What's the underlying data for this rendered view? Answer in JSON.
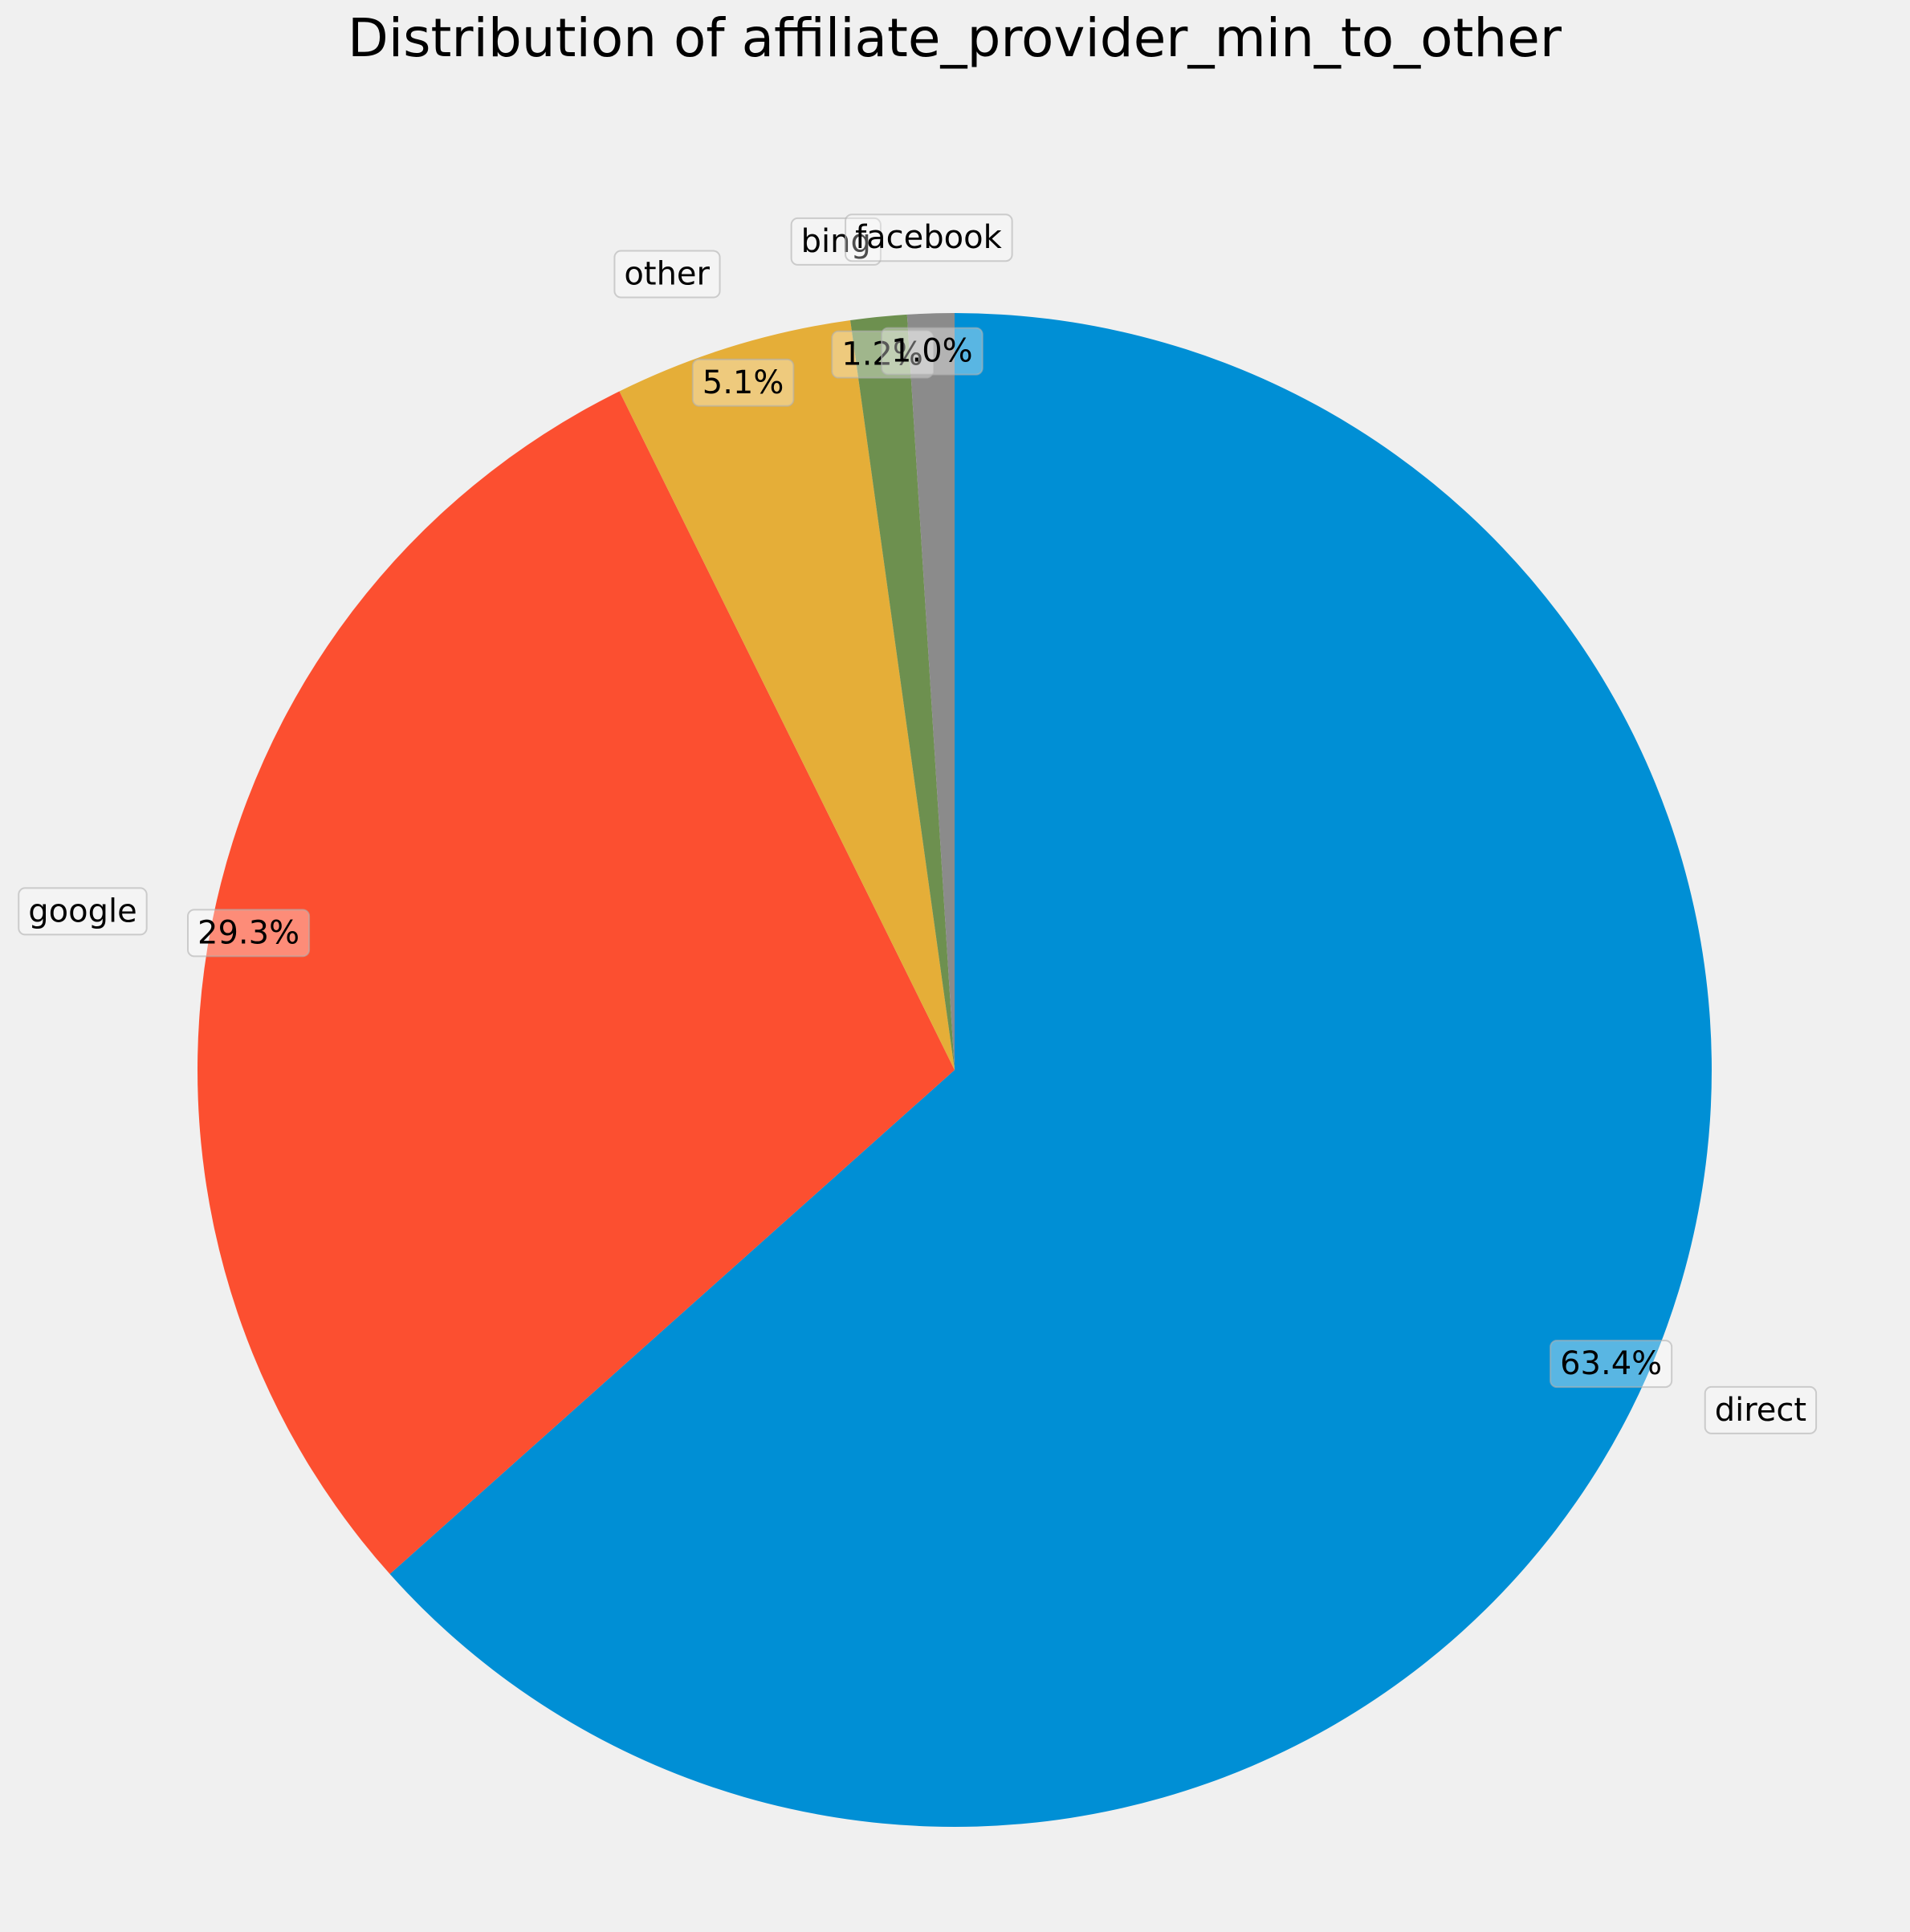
{
  "chart_data": {
    "type": "pie",
    "title": "Distribution of affiliate_provider_min_to_other",
    "start_angle_deg": 90,
    "direction": "clockwise",
    "slices": [
      {
        "label": "direct",
        "value": 63.4,
        "pct_label": "63.4%",
        "color": "#008fd5"
      },
      {
        "label": "google",
        "value": 29.3,
        "pct_label": "29.3%",
        "color": "#fc4f30"
      },
      {
        "label": "other",
        "value": 5.1,
        "pct_label": "5.1%",
        "color": "#e5ae38"
      },
      {
        "label": "bing",
        "value": 1.2,
        "pct_label": "1.2%",
        "color": "#6d904f"
      },
      {
        "label": "facebook",
        "value": 1.0,
        "pct_label": "1.0%",
        "color": "#8b8b8b"
      }
    ],
    "legend": "none",
    "grid": false
  }
}
